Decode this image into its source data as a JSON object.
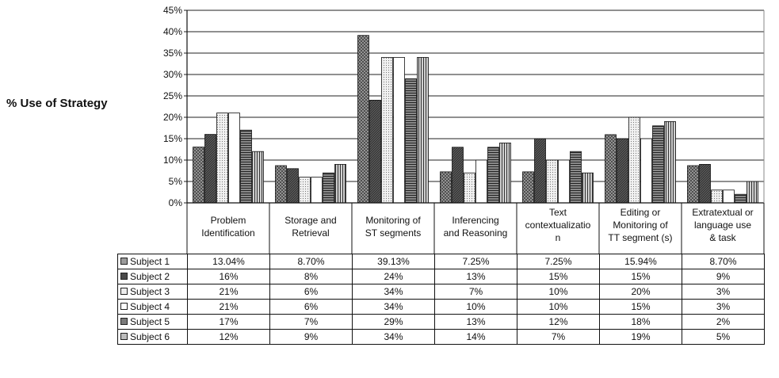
{
  "chart_data": {
    "type": "bar",
    "ylabel": "% Use of Strategy",
    "ylim": [
      0,
      45
    ],
    "yticks": [
      "0%",
      "5%",
      "10%",
      "15%",
      "20%",
      "25%",
      "30%",
      "35%",
      "40%",
      "45%"
    ],
    "grid": true,
    "categories": [
      [
        "Problem",
        "Identification"
      ],
      [
        "Storage and",
        "Retrieval"
      ],
      [
        "Monitoring of",
        "ST segments"
      ],
      [
        "Inferencing",
        "and Reasoning"
      ],
      [
        "Text",
        "contextualizatio",
        "n"
      ],
      [
        "Editing or",
        "Monitoring of",
        "TT segment (s)"
      ],
      [
        "Extratextual or",
        "language use",
        "& task"
      ]
    ],
    "series": [
      {
        "name": "Subject  1",
        "values": [
          13.04,
          8.7,
          39.13,
          7.25,
          7.25,
          15.94,
          8.7
        ],
        "labels": [
          "13.04%",
          "8.70%",
          "39.13%",
          "7.25%",
          "7.25%",
          "15.94%",
          "8.70%"
        ],
        "fill": "#9a9a9a",
        "pattern": "crosshatch"
      },
      {
        "name": "Subject  2",
        "values": [
          16,
          8,
          24,
          13,
          15,
          15,
          9
        ],
        "labels": [
          "16%",
          "8%",
          "24%",
          "13%",
          "15%",
          "15%",
          "9%"
        ],
        "fill": "#4a4a4a",
        "pattern": "dark"
      },
      {
        "name": "Subject  3",
        "values": [
          21,
          6,
          34,
          7,
          10,
          20,
          3
        ],
        "labels": [
          "21%",
          "6%",
          "34%",
          "7%",
          "10%",
          "20%",
          "3%"
        ],
        "fill": "#ececec",
        "pattern": "dots"
      },
      {
        "name": "Subject  4",
        "values": [
          21,
          6,
          34,
          10,
          10,
          15,
          3
        ],
        "labels": [
          "21%",
          "6%",
          "34%",
          "10%",
          "10%",
          "15%",
          "3%"
        ],
        "fill": "#ffffff",
        "pattern": "plain"
      },
      {
        "name": "Subject  5",
        "values": [
          17,
          7,
          29,
          13,
          12,
          18,
          2
        ],
        "labels": [
          "17%",
          "7%",
          "29%",
          "13%",
          "12%",
          "18%",
          "2%"
        ],
        "fill": "#7a7a7a",
        "pattern": "hstripes"
      },
      {
        "name": "Subject  6",
        "values": [
          12,
          9,
          34,
          14,
          7,
          19,
          5
        ],
        "labels": [
          "12%",
          "9%",
          "34%",
          "14%",
          "7%",
          "19%",
          "5%"
        ],
        "fill": "#bdbdbd",
        "pattern": "vstripes"
      }
    ]
  }
}
